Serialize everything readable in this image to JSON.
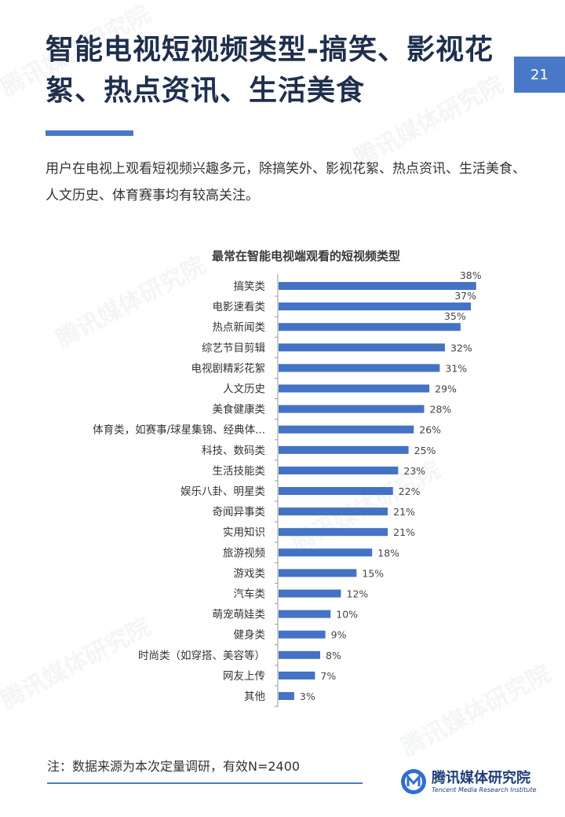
{
  "header": {
    "title": "智能电视短视频类型-搞笑、影视花絮、热点资讯、生活美食",
    "page_number": "21",
    "subtitle": "用户在电视上观看短视频兴趣多元，除搞笑外、影视花絮、热点资讯、生活美食、人文历史、体育赛事均有较高关注。"
  },
  "chart_data": {
    "type": "bar",
    "orientation": "horizontal",
    "title": "最常在智能电视端观看的短视频类型",
    "categories": [
      "搞笑类",
      "电影速看类",
      "热点新闻类",
      "综艺节目剪辑",
      "电视剧精彩花絮",
      "人文历史",
      "美食健康类",
      "体育类，如赛事/球星集锦、经典体...",
      "科技、数码类",
      "生活技能类",
      "娱乐八卦、明星类",
      "奇闻异事类",
      "实用知识",
      "旅游视频",
      "游戏类",
      "汽车类",
      "萌宠萌娃类",
      "健身类",
      "时尚类（如穿搭、美容等）",
      "网友上传",
      "其他"
    ],
    "values": [
      38,
      37,
      35,
      32,
      31,
      29,
      28,
      26,
      25,
      23,
      22,
      21,
      21,
      18,
      15,
      12,
      10,
      9,
      8,
      7,
      3
    ],
    "value_suffix": "%",
    "xlim": [
      0,
      40
    ],
    "bar_color": "#4472c4",
    "grid": false,
    "legend": "none"
  },
  "footer": {
    "note": "注：数据来源为本次定量调研，有效N=2400",
    "brand_name": "腾讯媒体研究院",
    "brand_sub": "Tencent Media Research Institute",
    "accent_color": "#4a78c8"
  },
  "watermark_text": "腾讯媒体研究院"
}
